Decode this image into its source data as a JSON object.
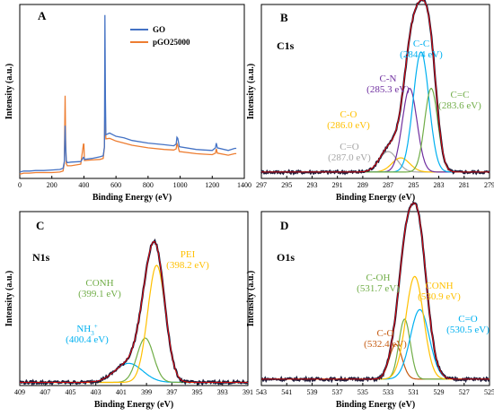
{
  "chart_data": [
    {
      "panel": "A",
      "type": "line",
      "xlabel": "Binding Energy (eV)",
      "ylabel": "Intensity (a.u.)",
      "xlim": [
        0,
        1400
      ],
      "xticks": [
        "0",
        "200",
        "400",
        "600",
        "800",
        "1000",
        "1200",
        "1400"
      ],
      "legend": {
        "position": "top-right",
        "entries": [
          "GO",
          "pGO25000"
        ]
      },
      "series": [
        {
          "name": "GO",
          "color": "#4472C4",
          "points": [
            [
              0,
              12
            ],
            [
              25,
              14
            ],
            [
              60,
              14
            ],
            [
              100,
              15
            ],
            [
              150,
              15
            ],
            [
              200,
              16
            ],
            [
              250,
              17
            ],
            [
              270,
              19
            ],
            [
              278,
              32
            ],
            [
              283,
              100
            ],
            [
              286,
              60
            ],
            [
              290,
              34
            ],
            [
              296,
              30
            ],
            [
              320,
              31
            ],
            [
              380,
              32
            ],
            [
              397,
              40
            ],
            [
              400,
              40
            ],
            [
              403,
              36
            ],
            [
              450,
              38
            ],
            [
              500,
              41
            ],
            [
              520,
              43
            ],
            [
              528,
              60
            ],
            [
              531,
              310
            ],
            [
              534,
              150
            ],
            [
              537,
              83
            ],
            [
              560,
              86
            ],
            [
              600,
              80
            ],
            [
              650,
              77
            ],
            [
              700,
              72
            ],
            [
              800,
              67
            ],
            [
              900,
              64
            ],
            [
              960,
              62
            ],
            [
              975,
              65
            ],
            [
              980,
              78
            ],
            [
              985,
              76
            ],
            [
              995,
              60
            ],
            [
              1100,
              55
            ],
            [
              1150,
              54
            ],
            [
              1200,
              53
            ],
            [
              1220,
              58
            ],
            [
              1225,
              67
            ],
            [
              1232,
              58
            ],
            [
              1300,
              53
            ],
            [
              1340,
              57
            ],
            [
              1350,
              57
            ]
          ]
        },
        {
          "name": "pGO25000",
          "color": "#ED7D31",
          "points": [
            [
              0,
              8
            ],
            [
              25,
              10
            ],
            [
              60,
              10
            ],
            [
              100,
              11
            ],
            [
              150,
              11
            ],
            [
              200,
              11
            ],
            [
              250,
              12
            ],
            [
              270,
              14
            ],
            [
              278,
              28
            ],
            [
              283,
              157
            ],
            [
              286,
              70
            ],
            [
              290,
              28
            ],
            [
              296,
              24
            ],
            [
              320,
              24
            ],
            [
              380,
              27
            ],
            [
              397,
              65
            ],
            [
              400,
              65
            ],
            [
              403,
              34
            ],
            [
              450,
              35
            ],
            [
              500,
              36
            ],
            [
              520,
              38
            ],
            [
              528,
              60
            ],
            [
              531,
              146
            ],
            [
              534,
              95
            ],
            [
              537,
              75
            ],
            [
              560,
              76
            ],
            [
              600,
              71
            ],
            [
              650,
              67
            ],
            [
              700,
              63
            ],
            [
              800,
              58
            ],
            [
              900,
              55
            ],
            [
              960,
              54
            ],
            [
              975,
              56
            ],
            [
              980,
              66
            ],
            [
              985,
              62
            ],
            [
              995,
              51
            ],
            [
              1100,
              47
            ],
            [
              1150,
              46
            ],
            [
              1200,
              45
            ],
            [
              1220,
              48
            ],
            [
              1225,
              56
            ],
            [
              1232,
              48
            ],
            [
              1300,
              44
            ],
            [
              1340,
              47
            ],
            [
              1350,
              47
            ]
          ]
        }
      ]
    },
    {
      "panel": "B",
      "core": "C1s",
      "type": "line",
      "xlabel": "Binding Energy (eV)",
      "ylabel": "Intensity (a.u.)",
      "xlim": [
        297,
        279
      ],
      "xticks": [
        "297",
        "295",
        "293",
        "291",
        "289",
        "287",
        "285",
        "283",
        "281",
        "279"
      ],
      "annotations": [
        {
          "lines": [
            "C-C",
            "(284.4 eV)"
          ],
          "color": "#00B0F0",
          "x": 284.4
        },
        {
          "lines": [
            "C-N",
            "(285.3 eV)"
          ],
          "color": "#7030A0",
          "x": 285.3
        },
        {
          "lines": [
            "C=C",
            "(283.6 eV)"
          ],
          "color": "#70AD47",
          "x": 283.6
        },
        {
          "lines": [
            "C-O",
            "(286.0 eV)"
          ],
          "color": "#FFC000",
          "x": 286.0
        },
        {
          "lines": [
            "C=O",
            "(287.0 eV)"
          ],
          "color": "#A6A6A6",
          "x": 287.0
        }
      ],
      "components": [
        {
          "label": "C=O",
          "color": "#A6A6A6",
          "center": 287.0,
          "height": 0.13,
          "width": 0.7
        },
        {
          "label": "C-O",
          "color": "#FFC000",
          "center": 286.0,
          "height": 0.09,
          "width": 0.7
        },
        {
          "label": "C-N",
          "color": "#7030A0",
          "center": 285.3,
          "height": 0.53,
          "width": 0.58
        },
        {
          "label": "C-C",
          "color": "#00B0F0",
          "center": 284.4,
          "height": 0.76,
          "width": 0.62
        },
        {
          "label": "C=C",
          "color": "#70AD47",
          "center": 283.6,
          "height": 0.53,
          "width": 0.52
        }
      ],
      "envelope": {
        "color": "#1F1F3D"
      },
      "fit": {
        "color": "#FF0000"
      },
      "baseline": 0.04
    },
    {
      "panel": "C",
      "core": "N1s",
      "type": "line",
      "xlabel": "Binding Energy (eV)",
      "ylabel": "Intensity (a.u.)",
      "xlim": [
        409,
        391
      ],
      "xticks": [
        "409",
        "407",
        "405",
        "403",
        "401",
        "399",
        "397",
        "395",
        "393",
        "391"
      ],
      "annotations": [
        {
          "lines": [
            "PEI",
            "(398.2 eV)"
          ],
          "color": "#FFC000",
          "x": 398.2
        },
        {
          "lines": [
            "CONH",
            "(399.1 eV)"
          ],
          "color": "#70AD47",
          "x": 399.1
        },
        {
          "lines": [
            "NH3+",
            "(400.4 eV)"
          ],
          "color": "#00B0F0",
          "x": 400.4
        }
      ],
      "components": [
        {
          "label": "NH3+",
          "color": "#00B0F0",
          "center": 400.4,
          "height": 0.12,
          "width": 1.1
        },
        {
          "label": "CONH",
          "color": "#70AD47",
          "center": 399.1,
          "height": 0.28,
          "width": 0.65
        },
        {
          "label": "PEI",
          "color": "#FFC000",
          "center": 398.2,
          "height": 0.74,
          "width": 0.7
        }
      ],
      "envelope": {
        "color": "#1F1F3D"
      },
      "fit": {
        "color": "#FF0000"
      },
      "baseline": 0.02
    },
    {
      "panel": "D",
      "core": "O1s",
      "type": "line",
      "xlabel": "Binding Energy (eV)",
      "ylabel": "Intensity (a.u.)",
      "xlim": [
        543,
        525
      ],
      "xticks": [
        "543",
        "541",
        "539",
        "537",
        "535",
        "533",
        "531",
        "529",
        "527",
        "525"
      ],
      "annotations": [
        {
          "lines": [
            "CONH",
            "(530.9 eV)"
          ],
          "color": "#FFC000",
          "x": 530.9
        },
        {
          "lines": [
            "C-OH",
            "(531.7 eV)"
          ],
          "color": "#70AD47",
          "x": 531.7
        },
        {
          "lines": [
            "C=O",
            "(530.5 eV)"
          ],
          "color": "#00B0F0",
          "x": 530.5
        },
        {
          "lines": [
            "C-O",
            "(532.4 eV)"
          ],
          "color": "#C55A11",
          "x": 532.4
        }
      ],
      "components": [
        {
          "label": "C-O",
          "color": "#C55A11",
          "center": 532.4,
          "height": 0.22,
          "width": 0.5
        },
        {
          "label": "C-OH",
          "color": "#70AD47",
          "center": 531.7,
          "height": 0.38,
          "width": 0.45
        },
        {
          "label": "C=O",
          "color": "#00B0F0",
          "center": 530.5,
          "height": 0.44,
          "width": 0.75
        },
        {
          "label": "CONH",
          "color": "#FFC000",
          "center": 530.9,
          "height": 0.65,
          "width": 0.7
        }
      ],
      "envelope": {
        "color": "#1F1F3D"
      },
      "fit": {
        "color": "#FF0000"
      },
      "baseline": 0.04
    }
  ]
}
